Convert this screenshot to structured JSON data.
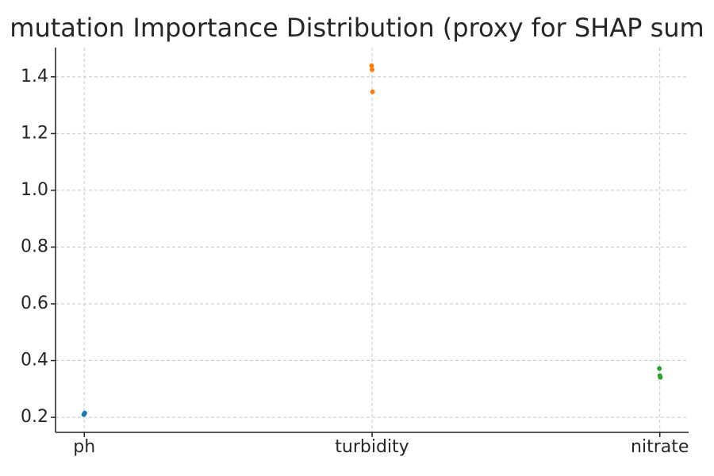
{
  "chart_data": {
    "type": "strip",
    "title": "mutation Importance Distribution (proxy for SHAP sum",
    "categories": [
      "ph",
      "turbidity",
      "nitrate"
    ],
    "values": [
      [
        0.21,
        0.212,
        0.215
      ],
      [
        1.439,
        1.425,
        1.347
      ],
      [
        0.372,
        0.347,
        0.341
      ]
    ],
    "colors": [
      "#1f77b4",
      "#ff7f0e",
      "#2ca02c"
    ],
    "ylim": [
      0.147,
      1.503
    ],
    "yticks": [
      0.2,
      0.4,
      0.6,
      0.8,
      {
        "value": 1.0,
        "label": "1.0"
      },
      1.2,
      1.4
    ],
    "grid": true
  }
}
